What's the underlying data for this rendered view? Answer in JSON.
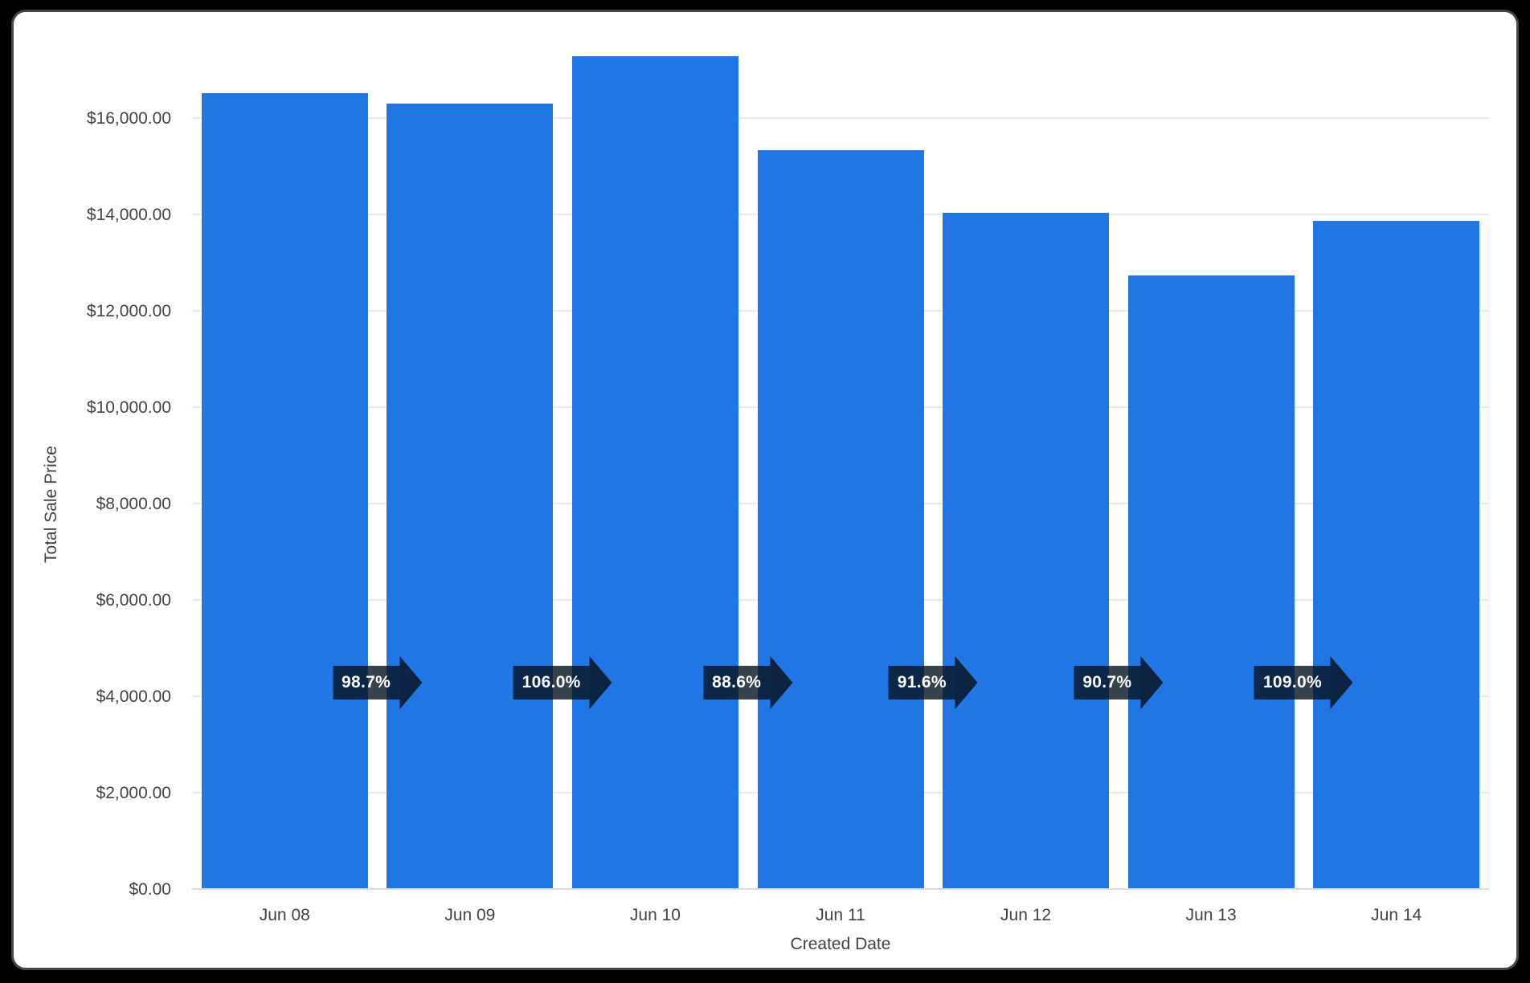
{
  "chart_data": {
    "type": "bar",
    "title": "",
    "xlabel": "Created Date",
    "ylabel": "Total Sale Price",
    "categories": [
      "Jun 08",
      "Jun 09",
      "Jun 10",
      "Jun 11",
      "Jun 12",
      "Jun 13",
      "Jun 14"
    ],
    "values": [
      16500,
      16290,
      17270,
      15310,
      14020,
      12715,
      13855
    ],
    "growth_labels": [
      "98.7%",
      "106.0%",
      "88.6%",
      "91.6%",
      "90.7%",
      "109.0%"
    ],
    "y_ticks": [
      "$0.00",
      "$2,000.00",
      "$4,000.00",
      "$6,000.00",
      "$8,000.00",
      "$10,000.00",
      "$12,000.00",
      "$14,000.00",
      "$16,000.00"
    ],
    "y_tick_values": [
      0,
      2000,
      4000,
      6000,
      8000,
      10000,
      12000,
      14000,
      16000
    ],
    "ylim": [
      0,
      18000
    ],
    "grid": true,
    "legend": "none",
    "colors": {
      "bar": "#2176e6",
      "growth_badge": "rgba(8,20,33,0.80)",
      "growth_text": "#ffffff",
      "axis_text": "#3f4348",
      "gridline": "#e8eaec",
      "baseline": "#d9dbde",
      "card_background": "#ffffff",
      "page_background": "#000000",
      "card_border": "#43474a"
    }
  }
}
